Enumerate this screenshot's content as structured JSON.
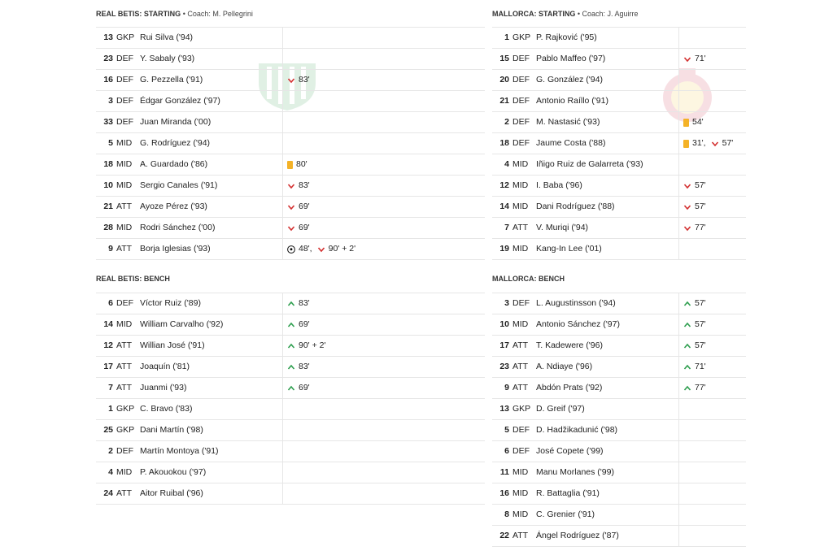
{
  "home": {
    "team": "REAL BETIS: STARTING",
    "coach": "Coach: M. Pellegrini",
    "bench_title": "REAL BETIS: BENCH",
    "starting": [
      {
        "num": "13",
        "pos": "GKP",
        "name": "Rui Silva ('94)",
        "events": []
      },
      {
        "num": "23",
        "pos": "DEF",
        "name": "Y. Sabaly ('93)",
        "events": []
      },
      {
        "num": "16",
        "pos": "DEF",
        "name": "G. Pezzella ('91)",
        "events": [
          {
            "type": "sub-off",
            "text": "83'"
          }
        ]
      },
      {
        "num": "3",
        "pos": "DEF",
        "name": "Édgar González ('97)",
        "events": []
      },
      {
        "num": "33",
        "pos": "DEF",
        "name": "Juan Miranda ('00)",
        "events": []
      },
      {
        "num": "5",
        "pos": "MID",
        "name": "G. Rodríguez ('94)",
        "events": []
      },
      {
        "num": "18",
        "pos": "MID",
        "name": "A. Guardado ('86)",
        "events": [
          {
            "type": "yellow",
            "text": "80'"
          }
        ]
      },
      {
        "num": "10",
        "pos": "MID",
        "name": "Sergio Canales ('91)",
        "events": [
          {
            "type": "sub-off",
            "text": "83'"
          }
        ]
      },
      {
        "num": "21",
        "pos": "ATT",
        "name": "Ayoze Pérez ('93)",
        "events": [
          {
            "type": "sub-off",
            "text": "69'"
          }
        ]
      },
      {
        "num": "28",
        "pos": "MID",
        "name": "Rodri Sánchez ('00)",
        "events": [
          {
            "type": "sub-off",
            "text": "69'"
          }
        ]
      },
      {
        "num": "9",
        "pos": "ATT",
        "name": "Borja Iglesias ('93)",
        "events": [
          {
            "type": "goal",
            "text": "48',"
          },
          {
            "type": "sub-off",
            "text": "90' + 2'"
          }
        ]
      }
    ],
    "bench": [
      {
        "num": "6",
        "pos": "DEF",
        "name": "Víctor Ruiz ('89)",
        "events": [
          {
            "type": "sub-on",
            "text": "83'"
          }
        ]
      },
      {
        "num": "14",
        "pos": "MID",
        "name": "William Carvalho ('92)",
        "events": [
          {
            "type": "sub-on",
            "text": "69'"
          }
        ]
      },
      {
        "num": "12",
        "pos": "ATT",
        "name": "Willian José ('91)",
        "events": [
          {
            "type": "sub-on",
            "text": "90' + 2'"
          }
        ]
      },
      {
        "num": "17",
        "pos": "ATT",
        "name": "Joaquín ('81)",
        "events": [
          {
            "type": "sub-on",
            "text": "83'"
          }
        ]
      },
      {
        "num": "7",
        "pos": "ATT",
        "name": "Juanmi ('93)",
        "events": [
          {
            "type": "sub-on",
            "text": "69'"
          }
        ]
      },
      {
        "num": "1",
        "pos": "GKP",
        "name": "C. Bravo ('83)",
        "events": []
      },
      {
        "num": "25",
        "pos": "GKP",
        "name": "Dani Martín ('98)",
        "events": []
      },
      {
        "num": "2",
        "pos": "DEF",
        "name": "Martín Montoya ('91)",
        "events": []
      },
      {
        "num": "4",
        "pos": "MID",
        "name": "P. Akouokou ('97)",
        "events": []
      },
      {
        "num": "24",
        "pos": "ATT",
        "name": "Aitor Ruibal ('96)",
        "events": []
      }
    ]
  },
  "away": {
    "team": "MALLORCA: STARTING",
    "coach": "Coach: J. Aguirre",
    "bench_title": "MALLORCA: BENCH",
    "starting": [
      {
        "num": "1",
        "pos": "GKP",
        "name": "P. Rajković ('95)",
        "events": []
      },
      {
        "num": "15",
        "pos": "DEF",
        "name": "Pablo Maffeo ('97)",
        "events": [
          {
            "type": "sub-off",
            "text": "71'"
          }
        ]
      },
      {
        "num": "20",
        "pos": "DEF",
        "name": "G. González ('94)",
        "events": []
      },
      {
        "num": "21",
        "pos": "DEF",
        "name": "Antonio Raíllo ('91)",
        "events": []
      },
      {
        "num": "2",
        "pos": "DEF",
        "name": "M. Nastasić ('93)",
        "events": [
          {
            "type": "yellow",
            "text": "54'"
          }
        ]
      },
      {
        "num": "18",
        "pos": "DEF",
        "name": "Jaume Costa ('88)",
        "events": [
          {
            "type": "yellow",
            "text": "31',"
          },
          {
            "type": "sub-off",
            "text": "57'"
          }
        ]
      },
      {
        "num": "4",
        "pos": "MID",
        "name": "Iñigo Ruiz de Galarreta ('93)",
        "events": []
      },
      {
        "num": "12",
        "pos": "MID",
        "name": "I. Baba ('96)",
        "events": [
          {
            "type": "sub-off",
            "text": "57'"
          }
        ]
      },
      {
        "num": "14",
        "pos": "MID",
        "name": "Dani Rodríguez ('88)",
        "events": [
          {
            "type": "sub-off",
            "text": "57'"
          }
        ]
      },
      {
        "num": "7",
        "pos": "ATT",
        "name": "V. Muriqi ('94)",
        "events": [
          {
            "type": "sub-off",
            "text": "77'"
          }
        ]
      },
      {
        "num": "19",
        "pos": "MID",
        "name": "Kang-In Lee ('01)",
        "events": []
      }
    ],
    "bench": [
      {
        "num": "3",
        "pos": "DEF",
        "name": "L. Augustinsson ('94)",
        "events": [
          {
            "type": "sub-on",
            "text": "57'"
          }
        ]
      },
      {
        "num": "10",
        "pos": "MID",
        "name": "Antonio Sánchez ('97)",
        "events": [
          {
            "type": "sub-on",
            "text": "57'"
          }
        ]
      },
      {
        "num": "17",
        "pos": "ATT",
        "name": "T. Kadewere ('96)",
        "events": [
          {
            "type": "sub-on",
            "text": "57'"
          }
        ]
      },
      {
        "num": "23",
        "pos": "ATT",
        "name": "A. Ndiaye ('96)",
        "events": [
          {
            "type": "sub-on",
            "text": "71'"
          }
        ]
      },
      {
        "num": "9",
        "pos": "ATT",
        "name": "Abdón Prats ('92)",
        "events": [
          {
            "type": "sub-on",
            "text": "77'"
          }
        ]
      },
      {
        "num": "13",
        "pos": "GKP",
        "name": "D. Greif ('97)",
        "events": []
      },
      {
        "num": "5",
        "pos": "DEF",
        "name": "D. Hadžikadunić ('98)",
        "events": []
      },
      {
        "num": "6",
        "pos": "DEF",
        "name": "José Copete ('99)",
        "events": []
      },
      {
        "num": "11",
        "pos": "MID",
        "name": "Manu Morlanes ('99)",
        "events": []
      },
      {
        "num": "16",
        "pos": "MID",
        "name": "R. Battaglia ('91)",
        "events": []
      },
      {
        "num": "8",
        "pos": "MID",
        "name": "C. Grenier ('91)",
        "events": []
      },
      {
        "num": "22",
        "pos": "ATT",
        "name": "Ángel Rodríguez ('87)",
        "events": []
      }
    ]
  },
  "colors": {
    "sub_off": "#d32f2f",
    "sub_on": "#2e9e4f",
    "yellow_card": "#f4b227",
    "divider": "#e6e6e6"
  },
  "icons": {
    "sub_off": "chevron-down-icon",
    "sub_on": "chevron-up-icon",
    "yellow": "yellow-card-icon",
    "goal": "soccer-ball-icon"
  }
}
